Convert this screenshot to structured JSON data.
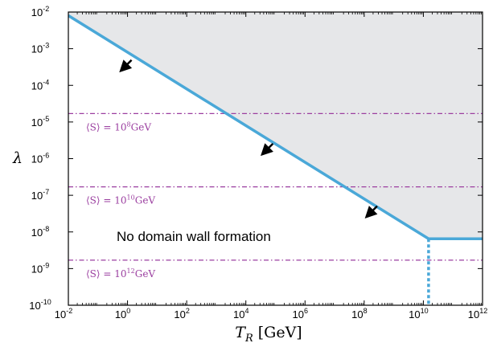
{
  "chart_data": {
    "type": "line",
    "xscale": "log",
    "yscale": "log",
    "xlim": [
      0.01,
      1000000000000.0
    ],
    "ylim": [
      1e-10,
      0.01
    ],
    "xlabel_symbol": "T",
    "xlabel_subscript": "R",
    "xlabel_unit": "[GeV]",
    "ylabel": "λ",
    "x_ticks": [
      {
        "base": "10",
        "exp": "-2"
      },
      {
        "base": "10",
        "exp": "0"
      },
      {
        "base": "10",
        "exp": "2"
      },
      {
        "base": "10",
        "exp": "4"
      },
      {
        "base": "10",
        "exp": "6"
      },
      {
        "base": "10",
        "exp": "8"
      },
      {
        "base": "10",
        "exp": "10"
      },
      {
        "base": "10",
        "exp": "12"
      }
    ],
    "y_ticks": [
      {
        "base": "10",
        "exp": "-2"
      },
      {
        "base": "10",
        "exp": "-3"
      },
      {
        "base": "10",
        "exp": "-4"
      },
      {
        "base": "10",
        "exp": "-5"
      },
      {
        "base": "10",
        "exp": "-6"
      },
      {
        "base": "10",
        "exp": "-7"
      },
      {
        "base": "10",
        "exp": "-8"
      },
      {
        "base": "10",
        "exp": "-9"
      },
      {
        "base": "10",
        "exp": "-10"
      }
    ],
    "boundary": {
      "color": "#4aa8d8",
      "shading_color": "#e6e7e9",
      "points": [
        [
          0.01,
          0.008
        ],
        [
          15000000000.0,
          6.5e-09
        ],
        [
          1000000000000.0,
          6.5e-09
        ]
      ],
      "dotted_vertical_x": 15000000000.0
    },
    "vev_lines": [
      {
        "y": 1.7e-05,
        "prefix": "⟨S⟩ = 10",
        "exp": "8",
        "unit": "GeV"
      },
      {
        "y": 1.7e-07,
        "prefix": "⟨S⟩ = 10",
        "exp": "10",
        "unit": "GeV"
      },
      {
        "y": 1.7e-09,
        "prefix": "⟨S⟩ = 10",
        "exp": "12",
        "unit": "GeV"
      }
    ],
    "vev_color": "#9b3fa0",
    "region_label": "No domain wall formation",
    "arrows": [
      {
        "x": 1.0,
        "y": 0.00063
      },
      {
        "x": 60000,
        "y": 3.3e-06
      },
      {
        "x": 200000000.0,
        "y": 6.5e-08
      }
    ]
  }
}
